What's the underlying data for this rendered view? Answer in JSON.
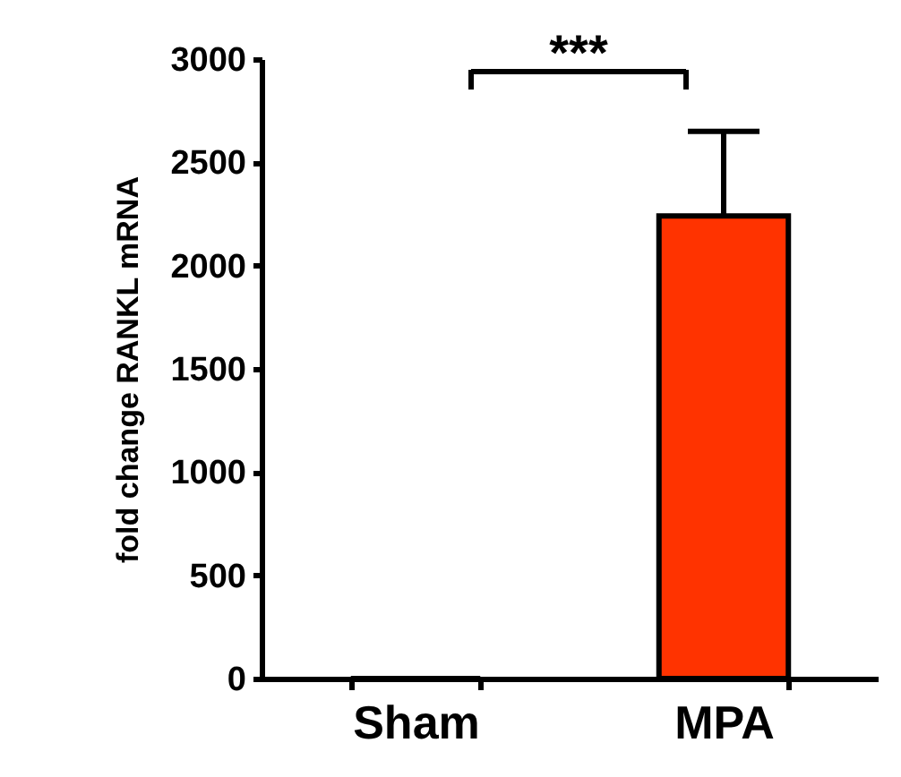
{
  "chart_data": {
    "type": "bar",
    "ylabel": "fold change RANKL mRNA",
    "categories": [
      "Sham",
      "MPA"
    ],
    "values": [
      0,
      2240
    ],
    "colors": [
      "#ff3300",
      "#ff3300"
    ],
    "errors": [
      null,
      [
        2240,
        2650
      ]
    ],
    "ylim": [
      0,
      3000
    ],
    "yticks": [
      0,
      500,
      1000,
      1500,
      2000,
      2500,
      3000
    ],
    "grid": false,
    "annotations": [
      "***"
    ]
  }
}
